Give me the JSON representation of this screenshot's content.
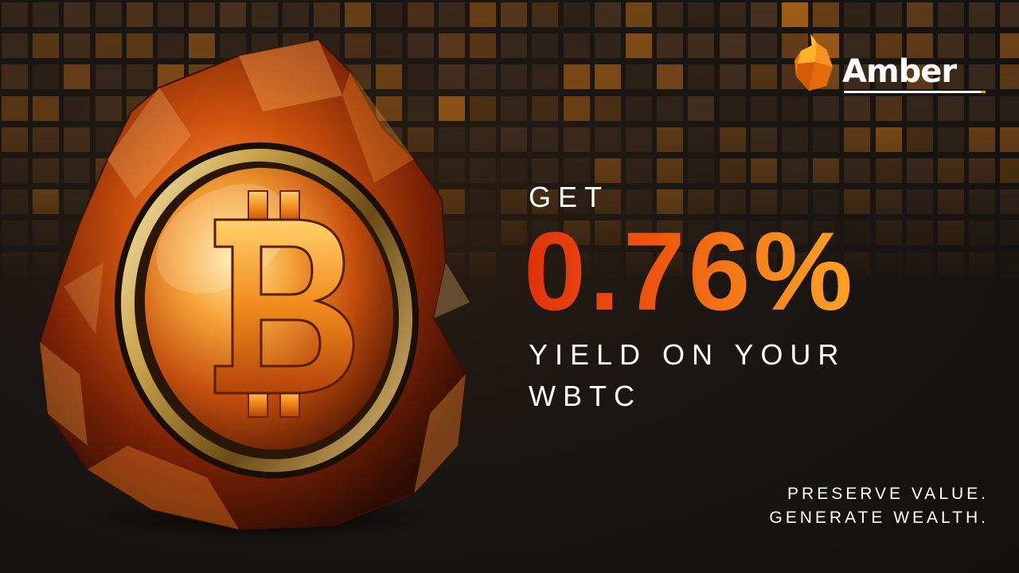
{
  "brand": {
    "name": "Amber",
    "accent": "#f4a21c",
    "mark_icon": "amber-gem-icon"
  },
  "headline": {
    "get": "GET",
    "rate": "0.76%",
    "yield_line1": "YIELD ON YOUR",
    "yield_line2": "WBTC"
  },
  "tagline": {
    "line1": "PRESERVE VALUE.",
    "line2": "GENERATE WEALTH."
  },
  "hero": {
    "icon": "bitcoin-coin-in-amber-icon",
    "symbol": "B"
  },
  "colors": {
    "background": "#171412",
    "orange": "#ee5610",
    "gold": "#f7891d",
    "text": "#ffffff"
  }
}
